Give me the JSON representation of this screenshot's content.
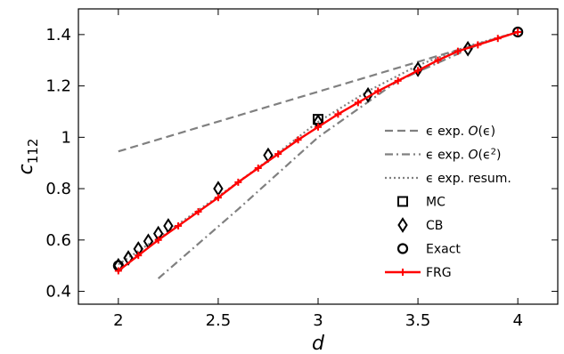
{
  "chart_data": {
    "type": "line",
    "xlabel": "d",
    "ylabel": "c",
    "ylabel_sub": "112",
    "xlim": [
      1.8,
      4.2
    ],
    "ylim": [
      0.35,
      1.5
    ],
    "xticks": [
      2,
      2.5,
      3,
      3.5,
      4
    ],
    "xtick_labels": [
      "2",
      "2.5",
      "3",
      "3.5",
      "4"
    ],
    "yticks": [
      0.4,
      0.6,
      0.8,
      1.0,
      1.2,
      1.4
    ],
    "ytick_labels": [
      "0.4",
      "0.6",
      "0.8",
      "1",
      "1.2",
      "1.4"
    ],
    "grid": false,
    "legend_position": "right",
    "series": [
      {
        "name": "ϵ exp. O(ϵ)",
        "legend_parts": [
          "ϵ exp. ",
          "O",
          "(ϵ)"
        ],
        "style": "dashed",
        "color": "#808080",
        "x": [
          2.0,
          4.0
        ],
        "y": [
          0.945,
          1.41
        ]
      },
      {
        "name": "ϵ exp. O(ϵ2)",
        "legend_parts": [
          "ϵ exp. ",
          "O",
          "(ϵ",
          "2",
          ")"
        ],
        "style": "dashdot",
        "color": "#808080",
        "x": [
          2.2,
          2.6,
          3.0,
          3.4,
          3.8,
          4.0
        ],
        "y": [
          0.45,
          0.72,
          1.0,
          1.22,
          1.36,
          1.41
        ]
      },
      {
        "name": "ϵ exp. resum.",
        "legend_parts": [
          "ϵ exp. resum."
        ],
        "style": "dotted",
        "color": "#808080",
        "x": [
          2.0,
          2.25,
          2.5,
          2.75,
          3.0,
          3.25,
          3.5,
          3.75,
          4.0
        ],
        "y": [
          0.505,
          0.635,
          0.77,
          0.91,
          1.06,
          1.18,
          1.28,
          1.355,
          1.41
        ]
      },
      {
        "name": "MC",
        "legend_parts": [
          "MC"
        ],
        "style": "marker",
        "marker": "square",
        "color": "#000000",
        "x": [
          3.0
        ],
        "y": [
          1.07
        ]
      },
      {
        "name": "CB",
        "legend_parts": [
          "CB"
        ],
        "style": "marker",
        "marker": "diamond",
        "color": "#000000",
        "x": [
          2.0,
          2.05,
          2.1,
          2.15,
          2.2,
          2.25,
          2.5,
          2.75,
          3.0,
          3.25,
          3.5,
          3.75
        ],
        "y": [
          0.5,
          0.53,
          0.565,
          0.595,
          0.625,
          0.655,
          0.8,
          0.93,
          1.06,
          1.165,
          1.265,
          1.345
        ]
      },
      {
        "name": "Exact",
        "legend_parts": [
          "Exact"
        ],
        "style": "marker",
        "marker": "circle",
        "color": "#000000",
        "x": [
          2.0,
          4.0
        ],
        "y": [
          0.5,
          1.41
        ]
      },
      {
        "name": "FRG",
        "legend_parts": [
          "FRG"
        ],
        "style": "line-plus",
        "color": "#ff0000",
        "x": [
          2.0,
          2.1,
          2.2,
          2.3,
          2.4,
          2.5,
          2.6,
          2.7,
          2.8,
          2.9,
          3.0,
          3.1,
          3.2,
          3.3,
          3.4,
          3.5,
          3.6,
          3.7,
          3.8,
          3.9,
          4.0
        ],
        "y": [
          0.48,
          0.54,
          0.6,
          0.655,
          0.71,
          0.765,
          0.825,
          0.88,
          0.935,
          0.99,
          1.04,
          1.09,
          1.135,
          1.18,
          1.22,
          1.26,
          1.3,
          1.335,
          1.36,
          1.385,
          1.41
        ]
      }
    ]
  }
}
